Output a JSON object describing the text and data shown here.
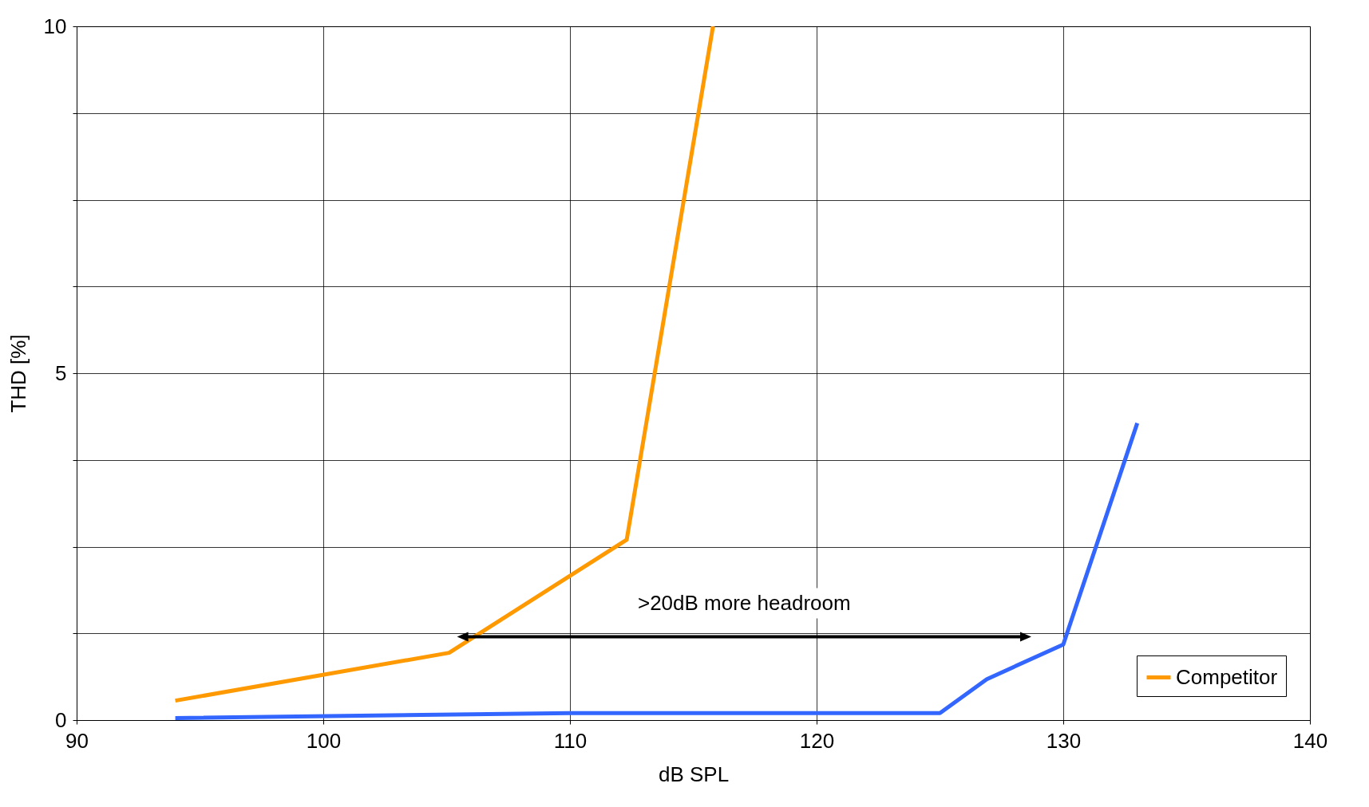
{
  "chart_data": {
    "type": "line",
    "xlabel": "dB SPL",
    "ylabel": "THD [%]",
    "xlim": [
      90,
      140
    ],
    "xticks": [
      90,
      100,
      110,
      120,
      130,
      140
    ],
    "ylim": [
      0,
      10
    ],
    "yticks": [
      0,
      {
        "value": 1.25,
        "label": null
      },
      {
        "value": 2.5,
        "label": null
      },
      {
        "value": 3.75,
        "label": null
      },
      5,
      {
        "value": 6.25,
        "label": null
      },
      {
        "value": 7.5,
        "label": null
      },
      {
        "value": 8.75,
        "label": null
      },
      10
    ],
    "grid": true,
    "legend": "bottom right",
    "line_style": "solid",
    "series": [
      {
        "name": "Competitor",
        "color": "#ff9900",
        "x": [
          94,
          105.1,
          112.3,
          115.8
        ],
        "values": [
          0.28,
          0.97,
          2.6,
          10
        ]
      },
      {
        "color": "#3366ff",
        "x": [
          94,
          110,
          125,
          126.9,
          130,
          133
        ],
        "values": [
          0.03,
          0.1,
          0.1,
          0.59,
          1.09,
          4.28
        ]
      }
    ],
    "annotations": [
      ">20dB more headroom"
    ]
  }
}
